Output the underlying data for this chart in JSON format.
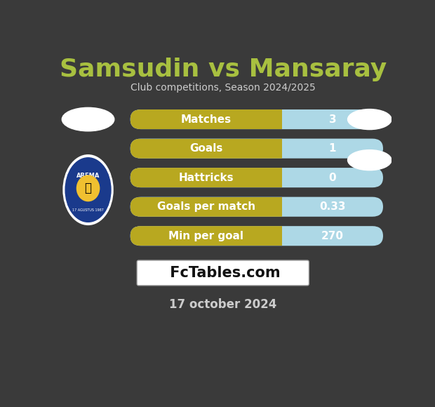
{
  "title": "Samsudin vs Mansaray",
  "subtitle": "Club competitions, Season 2024/2025",
  "date_text": "17 october 2024",
  "background_color": "#3a3a3a",
  "title_color": "#a8c040",
  "subtitle_color": "#cccccc",
  "date_color": "#cccccc",
  "stats": [
    {
      "label": "Matches",
      "value": "3"
    },
    {
      "label": "Goals",
      "value": "1"
    },
    {
      "label": "Hattricks",
      "value": "0"
    },
    {
      "label": "Goals per match",
      "value": "0.33"
    },
    {
      "label": "Min per goal",
      "value": "270"
    }
  ],
  "bar_left_color": "#b8a820",
  "bar_right_color": "#add8e6",
  "bar_text_color": "#ffffff",
  "fctables_bg": "#ffffff",
  "fctables_text": " FcTables.com",
  "fctables_text_color": "#111111",
  "split_ratio": 0.6
}
